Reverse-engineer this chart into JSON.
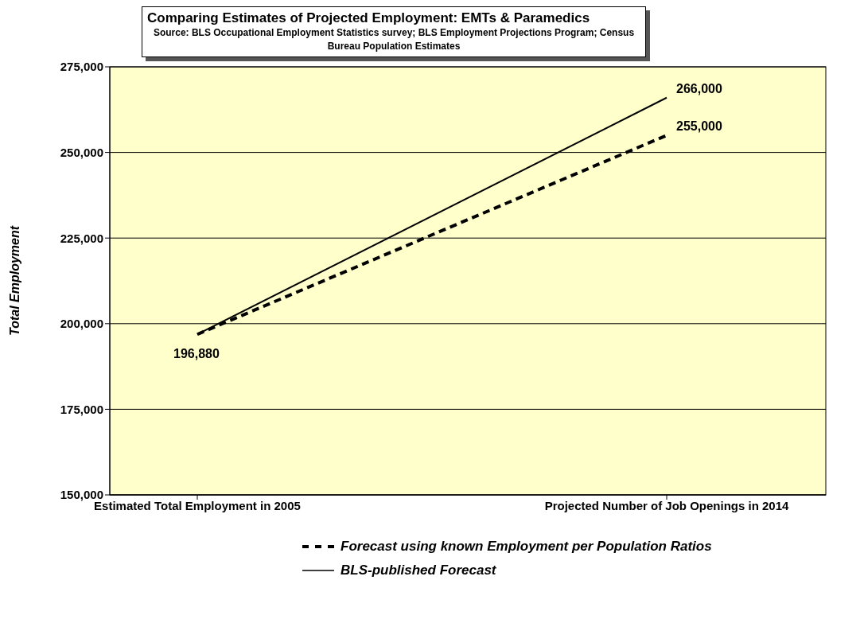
{
  "chart_data": {
    "type": "line",
    "title": "Comparing Estimates of Projected Employment: EMTs & Paramedics",
    "subtitle": "Source: BLS Occupational Employment Statistics survey; BLS Employment Projections Program; Census Bureau Population Estimates",
    "ylabel": "Total Employment",
    "categories": [
      "Estimated Total Employment in 2005",
      "Projected Number of Job Openings in 2014"
    ],
    "series": [
      {
        "name": "Forecast using known Employment per Population Ratios",
        "color": "#000000",
        "line_style": "dashed",
        "values": [
          196880,
          255000
        ],
        "value_labels": [
          "196,880",
          "255,000"
        ]
      },
      {
        "name": "BLS-published Forecast",
        "color": "#000000",
        "line_style": "solid",
        "values": [
          196880,
          266000
        ],
        "value_labels": [
          null,
          "266,000"
        ]
      }
    ],
    "ylim": [
      150000,
      275000
    ],
    "yticks": [
      {
        "value": 150000,
        "label": "150,000"
      },
      {
        "value": 175000,
        "label": "175,000"
      },
      {
        "value": 200000,
        "label": "200,000"
      },
      {
        "value": 225000,
        "label": "225,000"
      },
      {
        "value": 250000,
        "label": "250,000"
      },
      {
        "value": 275000,
        "label": "275,000"
      }
    ],
    "grid": "y",
    "legend": "bottom",
    "marker": "none"
  }
}
